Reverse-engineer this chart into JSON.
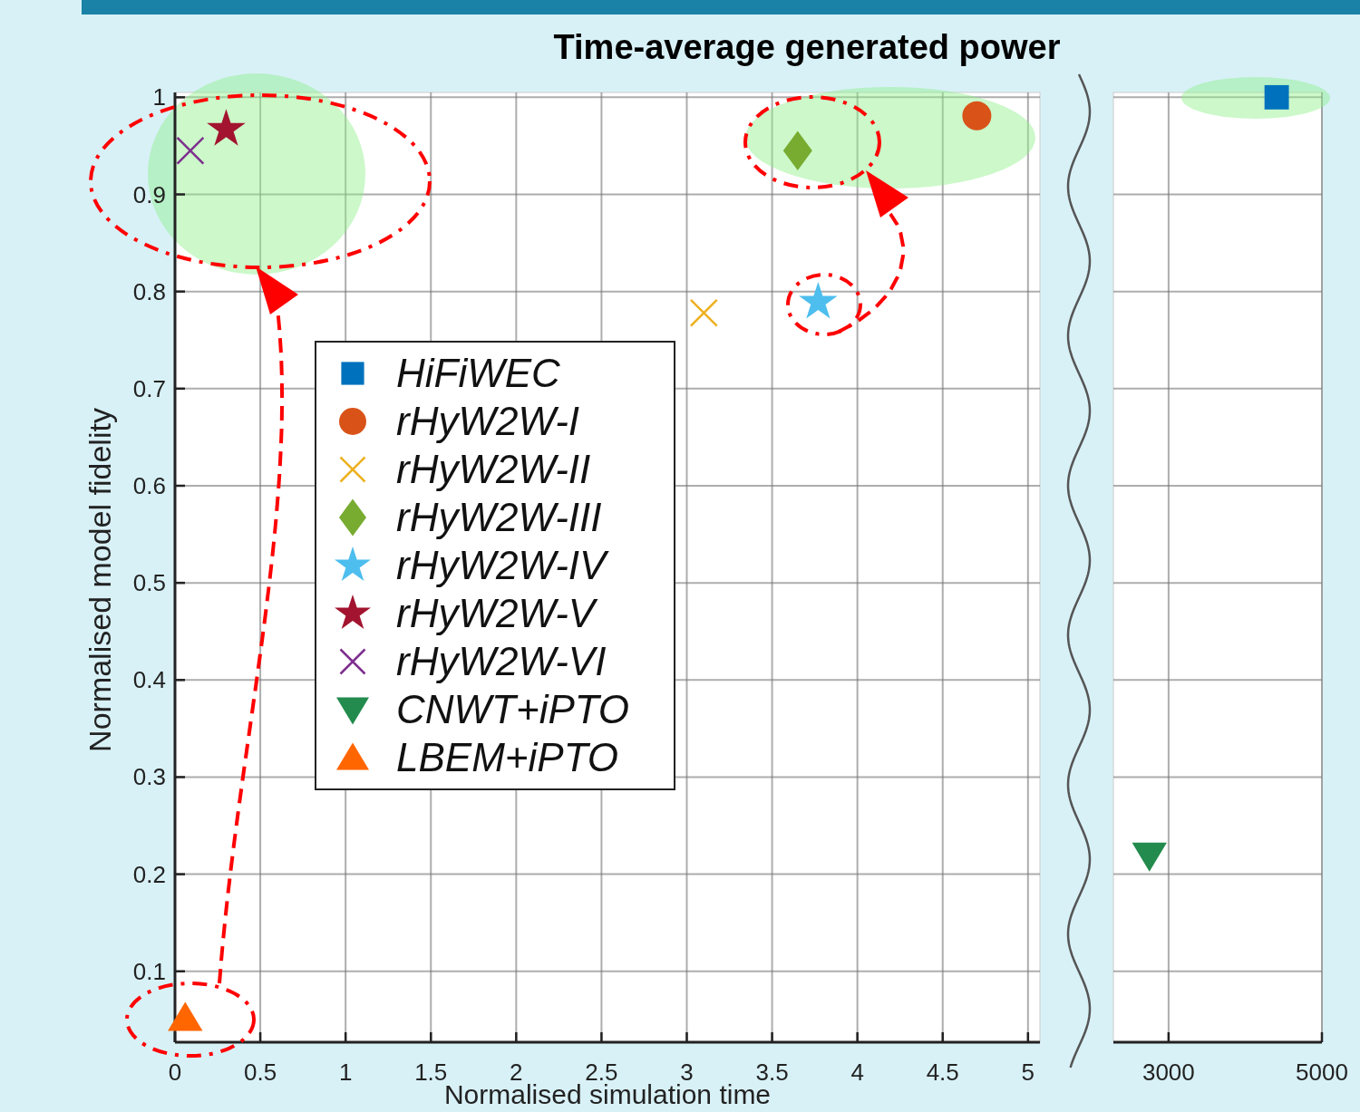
{
  "chart_data": [
    {
      "type": "scatter",
      "title": "Time-average generated power",
      "xlabel": "Normalised simulation time",
      "ylabel": "Normalised model fidelity",
      "xlim": [
        0,
        5.07
      ],
      "xticks": [
        0,
        0.5,
        1,
        1.5,
        2,
        2.5,
        3,
        3.5,
        4,
        4.5,
        5
      ],
      "ylim": [
        0.027,
        1.005
      ],
      "yticks": [
        0.1,
        0.2,
        0.3,
        0.4,
        0.5,
        0.6,
        0.7,
        0.8,
        0.9,
        1
      ],
      "grid": true,
      "legend": "left",
      "series": [
        {
          "name": "HiFiWEC",
          "color": "#0072bd",
          "marker": "square"
        },
        {
          "name": "rHyW2W-I",
          "color": "#d95319",
          "marker": "circle",
          "x": [
            4.7
          ],
          "values": [
            0.981
          ]
        },
        {
          "name": "rHyW2W-II",
          "color": "#edb120",
          "marker": "cross",
          "x": [
            3.1
          ],
          "values": [
            0.778
          ]
        },
        {
          "name": "rHyW2W-III",
          "color": "#77ac30",
          "marker": "diamond",
          "x": [
            3.65
          ],
          "values": [
            0.945
          ]
        },
        {
          "name": "rHyW2W-IV",
          "color": "#4dbeee",
          "marker": "star",
          "x": [
            3.77
          ],
          "values": [
            0.789
          ]
        },
        {
          "name": "rHyW2W-V",
          "color": "#a2142f",
          "marker": "star",
          "x": [
            0.3
          ],
          "values": [
            0.967
          ]
        },
        {
          "name": "rHyW2W-VI",
          "color": "#7e2f8e",
          "marker": "cross",
          "x": [
            0.09
          ],
          "values": [
            0.945
          ]
        },
        {
          "name": "CNWT+iPTO",
          "color": "#238b4d",
          "marker": "triangle-down"
        },
        {
          "name": "LBEM+iPTO",
          "color": "#ff6600",
          "marker": "triangle",
          "x": [
            0.06
          ],
          "values": [
            0.052
          ]
        }
      ]
    },
    {
      "type": "scatter",
      "xlim": [
        2280,
        5000
      ],
      "xticks": [
        3000,
        5000
      ],
      "ylim": [
        0.027,
        1.005
      ],
      "yticks": [
        0.1,
        0.2,
        0.3,
        0.4,
        0.5,
        0.6,
        0.7,
        0.8,
        0.9,
        1
      ],
      "grid": true,
      "tick_labels": "x",
      "series": [
        {
          "color": "#0072bd",
          "marker": "square",
          "x": [
            4410
          ],
          "values": [
            1.0
          ]
        },
        {
          "color": "#238b4d",
          "marker": "triangle-down",
          "x": [
            2750
          ],
          "values": [
            0.219
          ]
        }
      ]
    }
  ]
}
